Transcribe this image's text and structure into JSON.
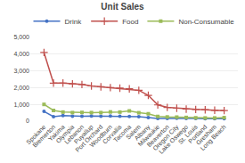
{
  "chart_data": {
    "type": "line",
    "title": "Unit Sales",
    "categories": [
      "Spokane",
      "Bremerton",
      "Yakima",
      "Olympia",
      "Lebanon",
      "Puyallup",
      "Port Orchard",
      "Woodburn",
      "Corvallis",
      "Tacoma",
      "Salem",
      "Albany",
      "Milwaukie",
      "Beaverton",
      "Oregon City",
      "Lake Oswego",
      "St. Louis",
      "Portland",
      "Gresham",
      "Long Beach"
    ],
    "series": [
      {
        "name": "Drink",
        "color": "#4472c4",
        "marker": "circle",
        "values": [
          580,
          270,
          330,
          290,
          290,
          300,
          290,
          300,
          290,
          280,
          260,
          210,
          160,
          160,
          170,
          160,
          160,
          150,
          140,
          140
        ]
      },
      {
        "name": "Food",
        "color": "#c0504d",
        "marker": "plus",
        "values": [
          4100,
          2270,
          2270,
          2230,
          2190,
          2100,
          2050,
          2000,
          1970,
          1930,
          1840,
          1540,
          970,
          820,
          770,
          720,
          700,
          680,
          650,
          630
        ]
      },
      {
        "name": "Non-Consumable",
        "color": "#9bbb59",
        "marker": "square",
        "values": [
          1000,
          640,
          540,
          510,
          520,
          510,
          510,
          550,
          540,
          610,
          500,
          440,
          280,
          250,
          240,
          220,
          200,
          190,
          190,
          210
        ]
      }
    ],
    "ylim": [
      0,
      5000
    ],
    "yticks": [
      0,
      {
        "value": 1000,
        "label": "1,000"
      },
      {
        "value": 2000,
        "label": "2,000"
      },
      {
        "value": 3000,
        "label": "3,000"
      },
      {
        "value": 4000,
        "label": "4,000"
      },
      {
        "value": 5000,
        "label": "5,000"
      }
    ],
    "grid": true,
    "legend": "top"
  }
}
